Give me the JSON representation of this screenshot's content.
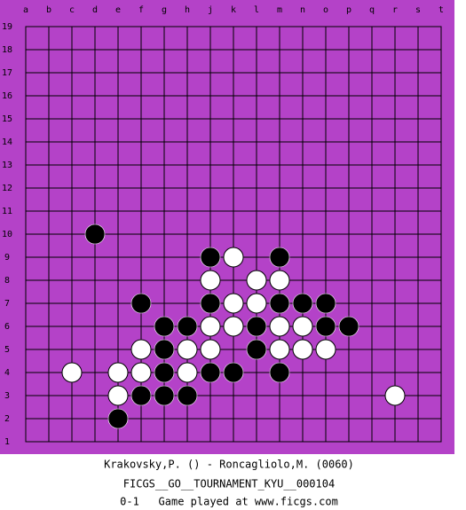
{
  "board": {
    "columns": [
      "a",
      "b",
      "c",
      "d",
      "e",
      "f",
      "g",
      "h",
      "j",
      "k",
      "l",
      "m",
      "n",
      "o",
      "p",
      "q",
      "r",
      "s",
      "t"
    ],
    "rows": [
      "19",
      "18",
      "17",
      "16",
      "15",
      "14",
      "13",
      "12",
      "11",
      "10",
      "9",
      "8",
      "7",
      "6",
      "5",
      "4",
      "3",
      "2",
      "1"
    ],
    "stones": [
      {
        "point": "d10",
        "color": "black"
      },
      {
        "point": "j9",
        "color": "black"
      },
      {
        "point": "k9",
        "color": "white"
      },
      {
        "point": "m9",
        "color": "black"
      },
      {
        "point": "j8",
        "color": "white"
      },
      {
        "point": "l8",
        "color": "white"
      },
      {
        "point": "m8",
        "color": "white"
      },
      {
        "point": "f7",
        "color": "black"
      },
      {
        "point": "j7",
        "color": "black"
      },
      {
        "point": "k7",
        "color": "white"
      },
      {
        "point": "l7",
        "color": "white"
      },
      {
        "point": "m7",
        "color": "black"
      },
      {
        "point": "n7",
        "color": "black"
      },
      {
        "point": "o7",
        "color": "black"
      },
      {
        "point": "g6",
        "color": "black"
      },
      {
        "point": "h6",
        "color": "black"
      },
      {
        "point": "j6",
        "color": "white"
      },
      {
        "point": "k6",
        "color": "white"
      },
      {
        "point": "l6",
        "color": "black"
      },
      {
        "point": "m6",
        "color": "white"
      },
      {
        "point": "n6",
        "color": "white"
      },
      {
        "point": "o6",
        "color": "black"
      },
      {
        "point": "p6",
        "color": "black"
      },
      {
        "point": "f5",
        "color": "white"
      },
      {
        "point": "g5",
        "color": "black"
      },
      {
        "point": "h5",
        "color": "white"
      },
      {
        "point": "j5",
        "color": "white"
      },
      {
        "point": "l5",
        "color": "black"
      },
      {
        "point": "m5",
        "color": "white"
      },
      {
        "point": "n5",
        "color": "white"
      },
      {
        "point": "o5",
        "color": "white"
      },
      {
        "point": "c4",
        "color": "white"
      },
      {
        "point": "e4",
        "color": "white"
      },
      {
        "point": "f4",
        "color": "white"
      },
      {
        "point": "g4",
        "color": "black"
      },
      {
        "point": "h4",
        "color": "white"
      },
      {
        "point": "j4",
        "color": "black"
      },
      {
        "point": "k4",
        "color": "black"
      },
      {
        "point": "m4",
        "color": "black"
      },
      {
        "point": "e3",
        "color": "white"
      },
      {
        "point": "f3",
        "color": "black"
      },
      {
        "point": "g3",
        "color": "black"
      },
      {
        "point": "h3",
        "color": "black"
      },
      {
        "point": "r3",
        "color": "white"
      },
      {
        "point": "e2",
        "color": "black"
      }
    ]
  },
  "footer": {
    "players": "Krakovsky,P. () - Roncagliolo,M. (0060)",
    "event": "FICGS__GO__TOURNAMENT_KYU__000104",
    "result": "0-1   Game played at www.ficgs.com"
  }
}
